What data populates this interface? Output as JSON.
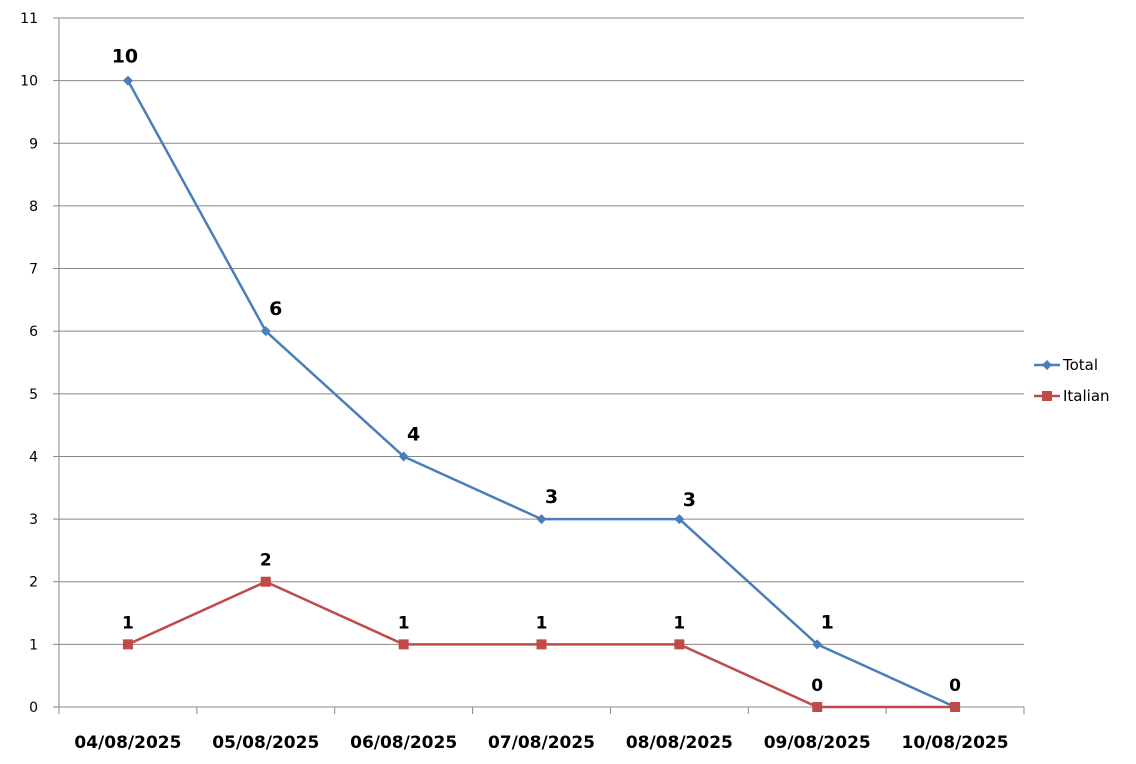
{
  "chart_data": {
    "type": "line",
    "title": "",
    "xlabel": "",
    "ylabel": "",
    "categories": [
      "04/08/2025",
      "05/08/2025",
      "06/08/2025",
      "07/08/2025",
      "08/08/2025",
      "09/08/2025",
      "10/08/2025"
    ],
    "y_ticks": [
      "0",
      "1",
      "2",
      "3",
      "4",
      "5",
      "6",
      "7",
      "8",
      "9",
      "10",
      "11"
    ],
    "ylim": [
      0,
      11
    ],
    "grid": true,
    "legend": "right",
    "series": [
      {
        "name": "Total",
        "values": [
          10,
          6,
          4,
          3,
          3,
          1,
          0
        ],
        "labels": [
          "10",
          "6",
          "4",
          "3",
          "3",
          "1",
          ""
        ],
        "color": "#4a7ebb",
        "marker": "diamond"
      },
      {
        "name": "Italian",
        "values": [
          1,
          2,
          1,
          1,
          1,
          0,
          0
        ],
        "labels": [
          "1",
          "2",
          "1",
          "1",
          "1",
          "0",
          "0"
        ],
        "color": "#be4b48",
        "marker": "square"
      }
    ]
  }
}
